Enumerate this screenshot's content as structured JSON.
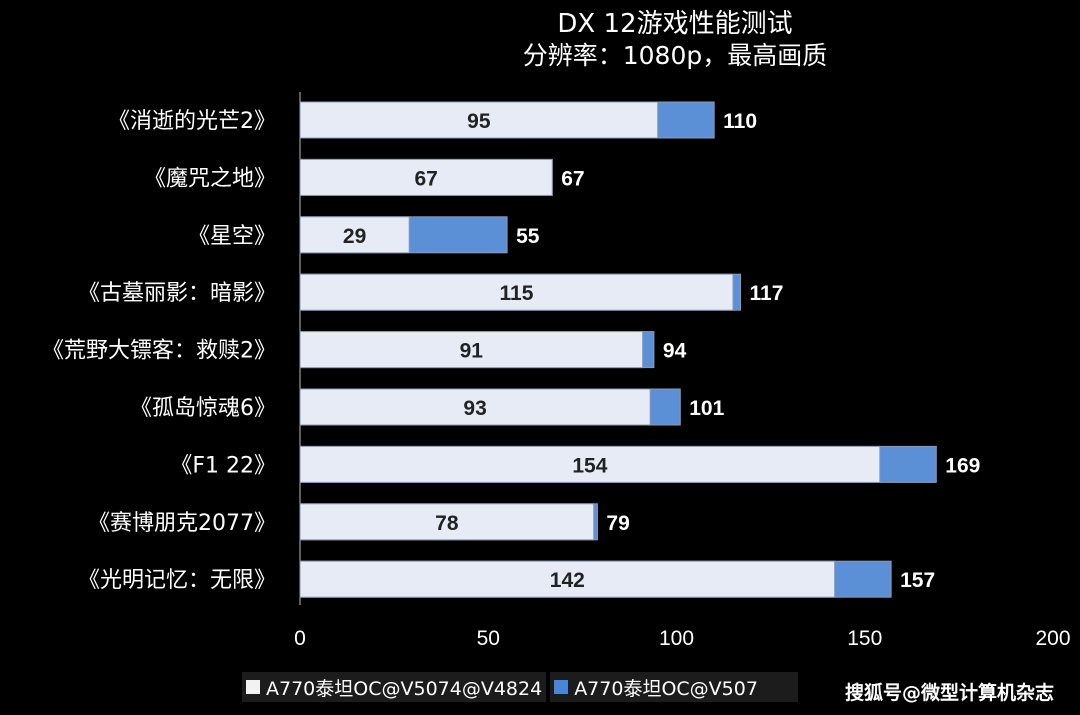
{
  "chart_data": {
    "type": "bar",
    "orientation": "horizontal",
    "title": "DX 12游戏性能测试",
    "subtitle": "分辨率：1080p，最高画质",
    "categories": [
      "《消逝的光芒2》",
      "《魔咒之地》",
      "《星空》",
      "《古墓丽影：暗影》",
      "《荒野大镖客：救赎2》",
      "《孤岛惊魂6》",
      "《F1 22》",
      "《赛博朋克2077》",
      "《光明记忆：无限》"
    ],
    "series": [
      {
        "name": "A770泰坦OC@V5074@V4824",
        "values": [
          95,
          67,
          29,
          115,
          91,
          93,
          154,
          78,
          142
        ],
        "color": "#e6ebf5"
      },
      {
        "name": "A770泰坦OC@V507",
        "values": [
          110,
          67,
          55,
          117,
          94,
          101,
          169,
          79,
          157
        ],
        "color": "#5b8fd6"
      }
    ],
    "xlim": [
      0,
      200
    ],
    "xticks": [
      "0",
      "50",
      "100",
      "150",
      "200"
    ],
    "grid": false,
    "legend_position": "bottom"
  },
  "watermark": "搜狐号@微型计算机杂志",
  "colors": {
    "background": "#000000",
    "text": "#ffffff",
    "bar_outline": "#8a9bb8"
  }
}
